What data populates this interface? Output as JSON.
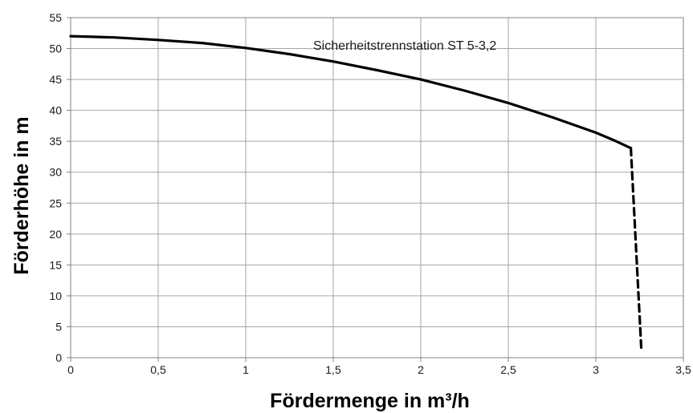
{
  "chart_data": {
    "type": "line",
    "title": "",
    "annotation": "Sicherheitstrennstation ST 5-3,2",
    "xlabel": "Fördermenge in m³/h",
    "ylabel": "Förderhöhe in m",
    "xlim": [
      0,
      3.5
    ],
    "ylim": [
      0,
      55
    ],
    "grid": true,
    "x_ticks": [
      "0",
      "0,5",
      "1",
      "1,5",
      "2",
      "2,5",
      "3",
      "3,5"
    ],
    "y_ticks": [
      "0",
      "5",
      "10",
      "15",
      "20",
      "25",
      "30",
      "35",
      "40",
      "45",
      "50",
      "55"
    ],
    "series": [
      {
        "style": "solid",
        "x": [
          0,
          0.25,
          0.5,
          0.75,
          1.0,
          1.25,
          1.5,
          1.75,
          2.0,
          2.25,
          2.5,
          2.75,
          3.0,
          3.1,
          3.2
        ],
        "y": [
          52,
          51.8,
          51.4,
          50.9,
          50.1,
          49.1,
          47.9,
          46.5,
          45,
          43.2,
          41.2,
          38.9,
          36.4,
          35.2,
          33.9
        ]
      },
      {
        "style": "dashed",
        "x": [
          3.2,
          3.26
        ],
        "y": [
          33.9,
          1.2
        ]
      }
    ]
  }
}
